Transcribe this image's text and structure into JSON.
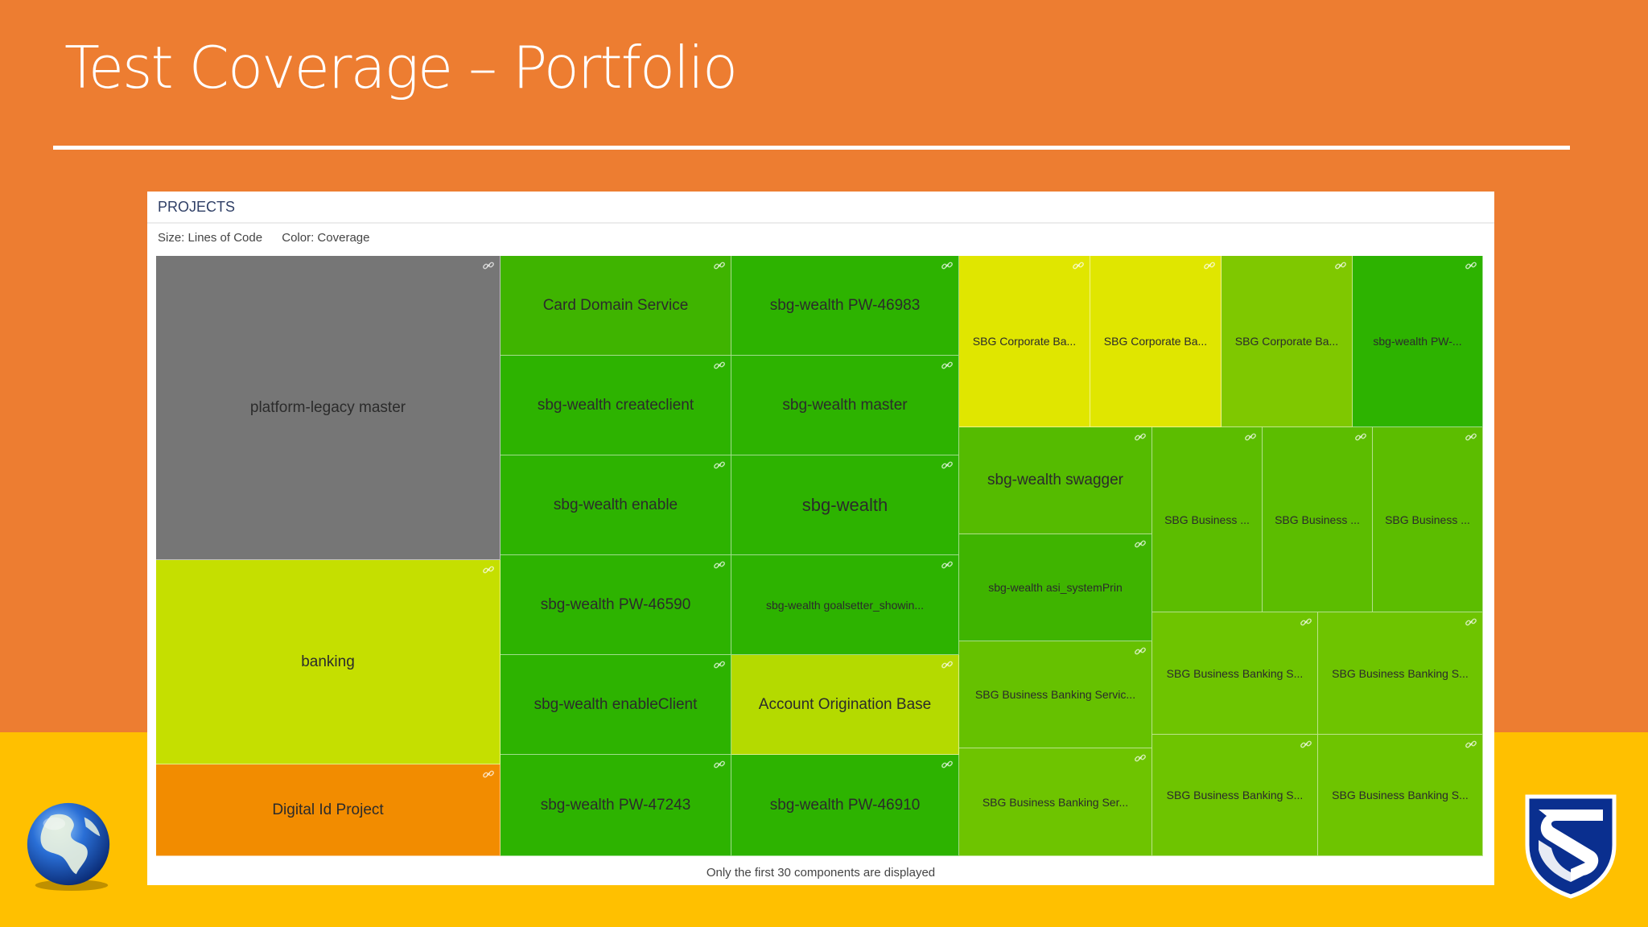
{
  "slide": {
    "title": "Test Coverage – Portfolio"
  },
  "panel": {
    "header": "PROJECTS",
    "legend_size": "Size: Lines of Code",
    "legend_color": "Color: Coverage",
    "footnote": "Only the first 30 components are displayed"
  },
  "colors": {
    "background_orange": "#ed7d31",
    "band_yellow": "#ffc000",
    "gray_no_data": "#767676",
    "yellow_green": "#c5df00",
    "orange_low": "#f28c00",
    "green_high": "#2db300"
  },
  "tiles": [
    {
      "label": "platform-legacy master",
      "color": "#767676"
    },
    {
      "label": "banking",
      "color": "#c5df00"
    },
    {
      "label": "Digital Id Project",
      "color": "#f28c00"
    },
    {
      "label": "Card Domain Service",
      "color": "#3fb400"
    },
    {
      "label": "sbg-wealth createclient",
      "color": "#2db300"
    },
    {
      "label": "sbg-wealth enable",
      "color": "#2db300"
    },
    {
      "label": "sbg-wealth PW-46590",
      "color": "#2db300"
    },
    {
      "label": "sbg-wealth enableClient",
      "color": "#2db300"
    },
    {
      "label": "sbg-wealth PW-47243",
      "color": "#2db300"
    },
    {
      "label": "sbg-wealth PW-46983",
      "color": "#2db300"
    },
    {
      "label": "sbg-wealth master",
      "color": "#2db300"
    },
    {
      "label": "sbg-wealth",
      "color": "#2db300"
    },
    {
      "label": "sbg-wealth goalsetter_showin...",
      "color": "#2db300"
    },
    {
      "label": "Account Origination Base",
      "color": "#b4da00"
    },
    {
      "label": "sbg-wealth PW-46910",
      "color": "#2db300"
    },
    {
      "label": "SBG Corporate Ba...",
      "color": "#e0e600"
    },
    {
      "label": "SBG Corporate Ba...",
      "color": "#e0e600"
    },
    {
      "label": "SBG Corporate Ba...",
      "color": "#7fc800"
    },
    {
      "label": "sbg-wealth PW-...",
      "color": "#2db300"
    },
    {
      "label": "sbg-wealth swagger",
      "color": "#55bb00"
    },
    {
      "label": "sbg-wealth asi_systemPrin",
      "color": "#3fb400"
    },
    {
      "label": "SBG Business Banking Servic...",
      "color": "#66c100"
    },
    {
      "label": "SBG Business Banking Ser...",
      "color": "#6ec400"
    },
    {
      "label": "SBG Business ...",
      "color": "#5cbd00"
    },
    {
      "label": "SBG Business ...",
      "color": "#5cbd00"
    },
    {
      "label": "SBG Business ...",
      "color": "#5cbd00"
    },
    {
      "label": "SBG Business Banking S...",
      "color": "#6ec400"
    },
    {
      "label": "SBG Business Banking S...",
      "color": "#6ec400"
    },
    {
      "label": "SBG Business Banking S...",
      "color": "#6ec400"
    },
    {
      "label": "SBG Business Banking S...",
      "color": "#6ec400"
    }
  ]
}
